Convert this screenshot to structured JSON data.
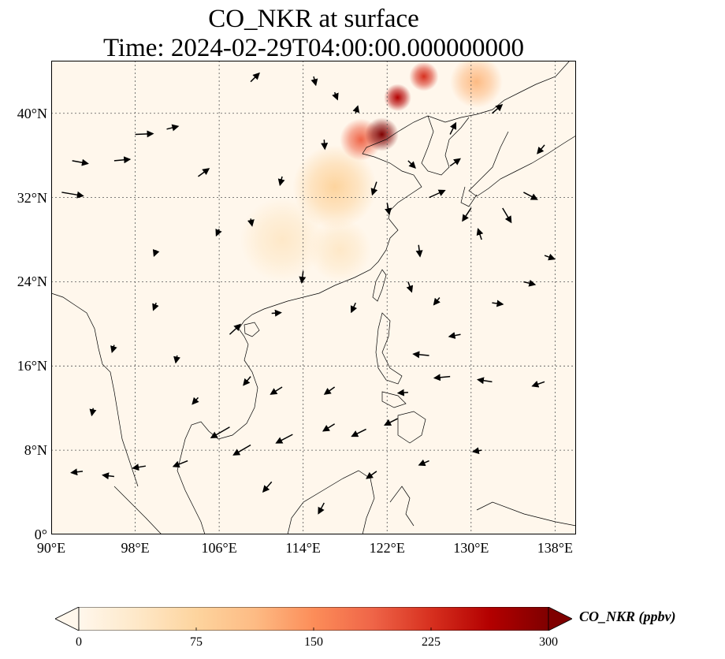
{
  "title": {
    "line1": "CO_NKR at surface",
    "line2": "Time: 2024-02-29T04:00:00.000000000"
  },
  "map": {
    "lon_range": [
      90,
      140
    ],
    "lat_range": [
      0,
      45
    ],
    "lon_ticks": [
      {
        "value": 90,
        "label": "90°E"
      },
      {
        "value": 98,
        "label": "98°E"
      },
      {
        "value": 106,
        "label": "106°E"
      },
      {
        "value": 114,
        "label": "114°E"
      },
      {
        "value": 122,
        "label": "122°E"
      },
      {
        "value": 130,
        "label": "130°E"
      },
      {
        "value": 138,
        "label": "138°E"
      }
    ],
    "lat_ticks": [
      {
        "value": 0,
        "label": "0°"
      },
      {
        "value": 8,
        "label": "8°N"
      },
      {
        "value": 16,
        "label": "16°N"
      },
      {
        "value": 24,
        "label": "24°N"
      },
      {
        "value": 32,
        "label": "32°N"
      },
      {
        "value": 40,
        "label": "40°N"
      }
    ],
    "gridlines": true
  },
  "colorbar": {
    "label": "CO_NKR (ppbv)",
    "colormap": "OrRd",
    "colors": [
      "#fff7ec",
      "#fee8c8",
      "#fdd49e",
      "#fdbb84",
      "#fc8d59",
      "#ef6548",
      "#d7301f",
      "#b30000",
      "#7f0000"
    ],
    "range": [
      0,
      300
    ],
    "extend": "both",
    "ticks": [
      {
        "value": 0,
        "label": "0"
      },
      {
        "value": 75,
        "label": "75"
      },
      {
        "value": 150,
        "label": "150"
      },
      {
        "value": 225,
        "label": "225"
      },
      {
        "value": 300,
        "label": "300"
      }
    ]
  },
  "field": {
    "hotspots": [
      {
        "lon": 121.5,
        "lat": 38.0,
        "value": 300,
        "spread_deg": 1.6
      },
      {
        "lon": 123.0,
        "lat": 41.5,
        "value": 260,
        "spread_deg": 1.3
      },
      {
        "lon": 125.5,
        "lat": 43.5,
        "value": 230,
        "spread_deg": 1.4
      },
      {
        "lon": 119.5,
        "lat": 37.5,
        "value": 170,
        "spread_deg": 2.0
      },
      {
        "lon": 130.5,
        "lat": 43.0,
        "value": 110,
        "spread_deg": 2.5
      },
      {
        "lon": 117.0,
        "lat": 33.0,
        "value": 60,
        "spread_deg": 4.0
      },
      {
        "lon": 117.5,
        "lat": 27.0,
        "value": 55,
        "spread_deg": 3.0
      },
      {
        "lon": 112.0,
        "lat": 28.0,
        "value": 35,
        "spread_deg": 4.0
      }
    ]
  },
  "wind_vectors": [
    {
      "lon": 91,
      "lat": 32.5,
      "u": 3,
      "v": -0.5
    },
    {
      "lon": 92,
      "lat": 35.5,
      "u": 2.2,
      "v": -0.4
    },
    {
      "lon": 98,
      "lat": 38,
      "u": 2.5,
      "v": 0.1
    },
    {
      "lon": 101,
      "lat": 38.5,
      "u": 1.6,
      "v": 0.4
    },
    {
      "lon": 96,
      "lat": 35.5,
      "u": 2.2,
      "v": 0.2
    },
    {
      "lon": 104,
      "lat": 34,
      "u": 1.5,
      "v": 1.1
    },
    {
      "lon": 109,
      "lat": 43,
      "u": 1.2,
      "v": 1.2
    },
    {
      "lon": 115,
      "lat": 43.5,
      "u": 0.3,
      "v": -1.2
    },
    {
      "lon": 117,
      "lat": 42,
      "u": 0.4,
      "v": -1.0
    },
    {
      "lon": 116,
      "lat": 37.5,
      "u": 0.1,
      "v": -1.3
    },
    {
      "lon": 121,
      "lat": 33.5,
      "u": -0.6,
      "v": -1.8
    },
    {
      "lon": 122,
      "lat": 31.5,
      "u": 0.3,
      "v": -1.6
    },
    {
      "lon": 126,
      "lat": 32,
      "u": 2.2,
      "v": 1.0
    },
    {
      "lon": 128,
      "lat": 35,
      "u": 1.4,
      "v": 1.0
    },
    {
      "lon": 130,
      "lat": 31,
      "u": -1.2,
      "v": -1.8
    },
    {
      "lon": 133,
      "lat": 31,
      "u": 1.2,
      "v": -2.0
    },
    {
      "lon": 135,
      "lat": 32.5,
      "u": 1.9,
      "v": -1.0
    },
    {
      "lon": 137,
      "lat": 26.5,
      "u": 1.4,
      "v": -0.5
    },
    {
      "lon": 135,
      "lat": 24,
      "u": 1.6,
      "v": -0.4
    },
    {
      "lon": 132,
      "lat": 22,
      "u": 1.5,
      "v": -0.2
    },
    {
      "lon": 129,
      "lat": 19,
      "u": -1.6,
      "v": -0.3
    },
    {
      "lon": 126,
      "lat": 17,
      "u": -2.2,
      "v": 0.2
    },
    {
      "lon": 128,
      "lat": 15,
      "u": -2.2,
      "v": -0.2
    },
    {
      "lon": 137,
      "lat": 14.5,
      "u": -1.7,
      "v": -0.6
    },
    {
      "lon": 132,
      "lat": 14.5,
      "u": -2.0,
      "v": 0.3
    },
    {
      "lon": 124,
      "lat": 13.5,
      "u": -1.4,
      "v": -0.1
    },
    {
      "lon": 123,
      "lat": 11,
      "u": -1.8,
      "v": -0.9
    },
    {
      "lon": 120,
      "lat": 10,
      "u": -2.0,
      "v": -1.0
    },
    {
      "lon": 117,
      "lat": 10.5,
      "u": -1.6,
      "v": -1.0
    },
    {
      "lon": 113,
      "lat": 9.5,
      "u": -2.3,
      "v": -1.2
    },
    {
      "lon": 109,
      "lat": 8.5,
      "u": -2.4,
      "v": -1.4
    },
    {
      "lon": 107,
      "lat": 10.2,
      "u": -2.6,
      "v": -1.5
    },
    {
      "lon": 103,
      "lat": 7,
      "u": -2.0,
      "v": -0.8
    },
    {
      "lon": 99,
      "lat": 6.5,
      "u": -1.8,
      "v": -0.3
    },
    {
      "lon": 96,
      "lat": 5.5,
      "u": -1.6,
      "v": 0.2
    },
    {
      "lon": 93,
      "lat": 6,
      "u": -1.6,
      "v": -0.2
    },
    {
      "lon": 111,
      "lat": 5,
      "u": -1.2,
      "v": -1.4
    },
    {
      "lon": 116,
      "lat": 3,
      "u": -0.8,
      "v": -1.5
    },
    {
      "lon": 121,
      "lat": 6,
      "u": -1.4,
      "v": -1.0
    },
    {
      "lon": 126,
      "lat": 7,
      "u": -1.4,
      "v": -0.6
    },
    {
      "lon": 131,
      "lat": 8,
      "u": -1.2,
      "v": -0.2
    },
    {
      "lon": 112,
      "lat": 14,
      "u": -1.6,
      "v": -1.0
    },
    {
      "lon": 117,
      "lat": 14,
      "u": -1.4,
      "v": -1.0
    },
    {
      "lon": 109,
      "lat": 15,
      "u": -1.0,
      "v": -1.2
    },
    {
      "lon": 107,
      "lat": 19,
      "u": 1.5,
      "v": 1.4
    },
    {
      "lon": 111,
      "lat": 21,
      "u": 1.3,
      "v": 0.1
    },
    {
      "lon": 114,
      "lat": 25,
      "u": -0.2,
      "v": -1.6
    },
    {
      "lon": 119,
      "lat": 22,
      "u": -0.6,
      "v": -1.3
    },
    {
      "lon": 124,
      "lat": 24,
      "u": 0.5,
      "v": -1.4
    },
    {
      "lon": 127,
      "lat": 22.5,
      "u": -0.8,
      "v": -1.0
    },
    {
      "lon": 100,
      "lat": 22,
      "u": -0.4,
      "v": -1.0
    },
    {
      "lon": 96,
      "lat": 18,
      "u": -0.3,
      "v": -1.0
    },
    {
      "lon": 102,
      "lat": 17,
      "u": -0.2,
      "v": -1.0
    },
    {
      "lon": 94,
      "lat": 12,
      "u": -0.2,
      "v": -1.0
    },
    {
      "lon": 104,
      "lat": 13,
      "u": -0.8,
      "v": -0.9
    },
    {
      "lon": 109,
      "lat": 30,
      "u": 0.2,
      "v": -1.0
    },
    {
      "lon": 112,
      "lat": 34,
      "u": -0.3,
      "v": -1.2
    },
    {
      "lon": 106,
      "lat": 29,
      "u": -0.4,
      "v": -0.9
    },
    {
      "lon": 100,
      "lat": 27,
      "u": -0.3,
      "v": -0.8
    },
    {
      "lon": 125,
      "lat": 27.5,
      "u": 0.2,
      "v": -1.6
    },
    {
      "lon": 131,
      "lat": 28,
      "u": -0.5,
      "v": 1.5
    },
    {
      "lon": 128,
      "lat": 38,
      "u": 0.8,
      "v": 1.6
    },
    {
      "lon": 132,
      "lat": 40,
      "u": 1.4,
      "v": 1.2
    },
    {
      "lon": 137,
      "lat": 37,
      "u": -1.0,
      "v": -1.2
    },
    {
      "lon": 124,
      "lat": 35.5,
      "u": 1.0,
      "v": -1.0
    },
    {
      "lon": 119,
      "lat": 40,
      "u": 0.3,
      "v": 1.0
    }
  ]
}
